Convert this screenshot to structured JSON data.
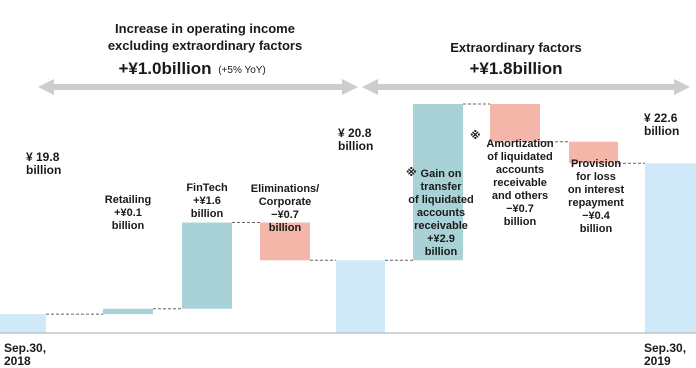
{
  "header_left": {
    "line1": "Increase in operating income",
    "line2": "excluding extraordinary factors",
    "amount": "+¥1.0billion",
    "pct": "(+5% YoY)"
  },
  "header_right": {
    "line1": "Extraordinary factors",
    "amount": "+¥1.8billion"
  },
  "note_mark": "※",
  "colors": {
    "total": "#cfe9f8",
    "gain_teal": "#a9d2d6",
    "loss_pink": "#f4b6a9",
    "arrow": "#cdcdcd",
    "axis": "#aaaaaa",
    "dash": "#666666"
  },
  "chart_data": {
    "type": "bar",
    "subtype": "waterfall",
    "unit": "billion yen",
    "categories": [
      "Sep.30, 2018",
      "Retailing",
      "FinTech",
      "Eliminations/ Corporate",
      "¥20.8 billion",
      "Gain on transfer of liquidated accounts receivable",
      "Amortization of liquidated accounts receivable and others",
      "Provision for loss on interest repayment",
      "Sep.30, 2019"
    ],
    "values": [
      19.8,
      0.1,
      1.6,
      -0.7,
      20.8,
      2.9,
      -0.7,
      -0.4,
      22.6
    ],
    "bars": [
      {
        "kind": "total",
        "value": 19.8,
        "top_label": [
          "¥ 19.8",
          "billion"
        ],
        "bottom_label": [
          "Sep.30,",
          "2018"
        ]
      },
      {
        "kind": "increase",
        "value": 0.1,
        "label": [
          "Retailing",
          "+¥0.1",
          "billion"
        ]
      },
      {
        "kind": "increase",
        "value": 1.6,
        "label": [
          "FinTech",
          "+¥1.6",
          "billion"
        ]
      },
      {
        "kind": "decrease",
        "value": -0.7,
        "label": [
          "Eliminations/",
          "Corporate",
          "−¥0.7",
          "billion"
        ]
      },
      {
        "kind": "total",
        "value": 20.8,
        "top_label": [
          "¥ 20.8",
          "billion"
        ]
      },
      {
        "kind": "increase",
        "value": 2.9,
        "note": true,
        "label": [
          "Gain on",
          "transfer",
          "of liquidated",
          "accounts",
          "receivable",
          "+¥2.9",
          "billion"
        ]
      },
      {
        "kind": "decrease",
        "value": -0.7,
        "note": true,
        "label": [
          "Amortization",
          "of liquidated",
          "accounts",
          "receivable",
          "and others",
          "−¥0.7",
          "billion"
        ]
      },
      {
        "kind": "decrease",
        "value": -0.4,
        "label": [
          "Provision",
          "for loss",
          "on interest",
          "repayment",
          "−¥0.4",
          "billion"
        ]
      },
      {
        "kind": "total",
        "value": 22.6,
        "top_label": [
          "¥ 22.6",
          "billion"
        ],
        "bottom_label": [
          "Sep.30,",
          "2019"
        ]
      }
    ]
  }
}
